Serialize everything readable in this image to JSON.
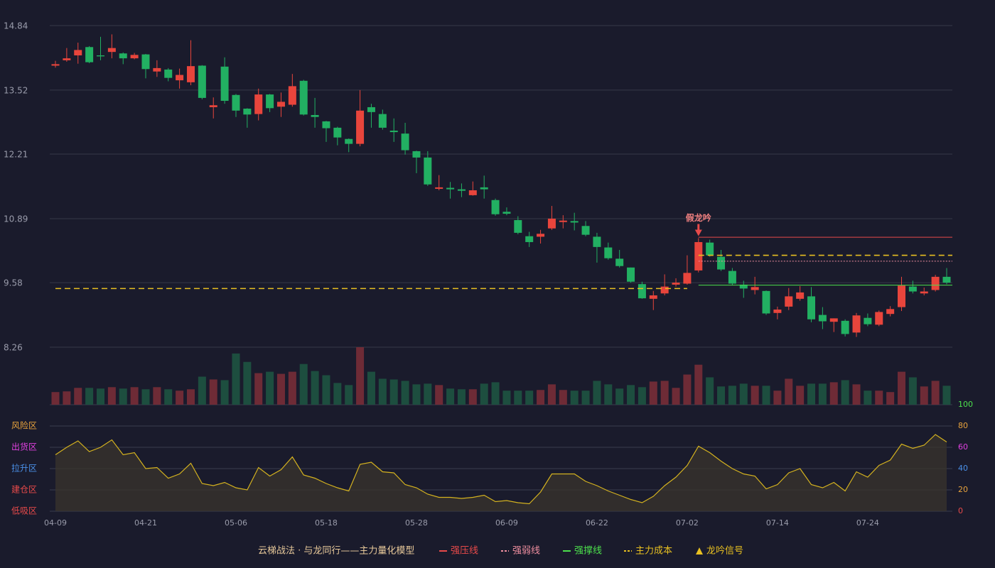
{
  "chart_data": {
    "type": "candlestick",
    "title": "云梯战法 · 与龙同行——主力量化模型",
    "categories": [
      "04-09",
      null,
      null,
      null,
      null,
      null,
      null,
      null,
      "04-21",
      null,
      null,
      null,
      null,
      null,
      null,
      null,
      "05-06",
      null,
      null,
      null,
      null,
      null,
      null,
      null,
      "05-18",
      null,
      null,
      null,
      null,
      null,
      null,
      null,
      "05-28",
      null,
      null,
      null,
      null,
      null,
      null,
      null,
      "06-09",
      null,
      null,
      null,
      null,
      null,
      null,
      null,
      "06-22",
      null,
      null,
      null,
      null,
      null,
      null,
      null,
      "07-02",
      null,
      null,
      null,
      null,
      null,
      null,
      null,
      "07-14",
      null,
      null,
      null,
      null,
      null,
      null,
      null,
      "07-24",
      null,
      null,
      null,
      null,
      null,
      null,
      null
    ],
    "open": [
      14.02,
      14.13,
      14.23,
      14.4,
      14.23,
      14.3,
      14.27,
      14.17,
      14.25,
      13.9,
      13.94,
      13.72,
      13.68,
      14.02,
      13.17,
      14.0,
      13.42,
      13.14,
      13.03,
      13.43,
      13.18,
      13.22,
      13.71,
      13.01,
      12.88,
      12.75,
      12.52,
      12.42,
      13.17,
      13.03,
      12.69,
      12.63,
      12.27,
      12.14,
      11.5,
      11.52,
      11.49,
      11.37,
      11.53,
      11.27,
      11.03,
      10.86,
      10.53,
      10.52,
      10.69,
      10.82,
      10.84,
      10.74,
      10.52,
      10.3,
      10.07,
      9.89,
      9.55,
      9.25,
      9.36,
      9.54,
      9.56,
      9.83,
      10.4,
      10.11,
      9.82,
      9.54,
      9.43,
      9.41,
      8.96,
      9.09,
      9.25,
      9.3,
      8.92,
      8.78,
      8.8,
      8.56,
      8.86,
      8.72,
      8.94,
      9.08,
      9.5,
      9.36,
      9.43,
      9.7
    ],
    "close": [
      14.05,
      14.17,
      14.34,
      14.09,
      14.21,
      14.38,
      14.17,
      14.24,
      13.95,
      13.97,
      13.77,
      13.83,
      14.01,
      13.36,
      13.21,
      13.3,
      13.1,
      13.02,
      13.43,
      13.15,
      13.28,
      13.6,
      13.02,
      12.97,
      12.74,
      12.55,
      12.42,
      13.1,
      13.07,
      12.75,
      12.66,
      12.29,
      12.14,
      11.59,
      11.53,
      11.49,
      11.46,
      11.47,
      11.49,
      10.98,
      10.99,
      10.6,
      10.41,
      10.58,
      10.89,
      10.85,
      10.81,
      10.56,
      10.31,
      10.08,
      9.92,
      9.6,
      9.26,
      9.32,
      9.5,
      9.58,
      9.78,
      10.41,
      10.14,
      9.85,
      9.56,
      9.46,
      9.49,
      8.95,
      9.03,
      9.3,
      9.38,
      8.83,
      8.79,
      8.85,
      8.53,
      8.91,
      8.73,
      8.98,
      9.04,
      9.52,
      9.4,
      9.4,
      9.7,
      9.58
    ],
    "high": [
      14.12,
      14.38,
      14.49,
      14.42,
      14.61,
      14.66,
      14.29,
      14.28,
      14.26,
      14.13,
      13.97,
      13.96,
      14.54,
      14.03,
      13.37,
      14.19,
      13.44,
      13.15,
      13.55,
      13.44,
      13.47,
      13.85,
      13.73,
      13.36,
      12.89,
      12.77,
      12.53,
      13.52,
      13.24,
      13.12,
      12.94,
      12.85,
      12.28,
      12.27,
      11.78,
      11.64,
      11.61,
      11.65,
      11.77,
      11.3,
      11.12,
      10.94,
      10.62,
      10.66,
      11.15,
      10.96,
      11.01,
      10.84,
      10.6,
      10.4,
      10.25,
      9.89,
      9.6,
      9.41,
      9.75,
      9.67,
      10.14,
      10.49,
      10.46,
      10.25,
      9.88,
      9.62,
      9.7,
      9.42,
      9.09,
      9.47,
      9.51,
      9.49,
      9.08,
      8.85,
      8.83,
      8.96,
      8.95,
      9.01,
      9.1,
      9.7,
      9.62,
      9.48,
      9.74,
      9.88
    ],
    "low": [
      13.98,
      14.1,
      14.06,
      14.07,
      14.13,
      14.17,
      14.05,
      14.15,
      13.76,
      13.79,
      13.7,
      13.55,
      13.62,
      13.33,
      12.94,
      13.24,
      12.97,
      12.75,
      12.9,
      13.07,
      12.97,
      13.18,
      13.0,
      12.75,
      12.46,
      12.39,
      12.25,
      12.37,
      12.75,
      12.71,
      12.46,
      12.2,
      11.82,
      11.56,
      11.47,
      11.3,
      11.33,
      11.36,
      11.3,
      10.95,
      10.96,
      10.57,
      10.31,
      10.38,
      10.66,
      10.69,
      10.65,
      10.53,
      9.99,
      10.05,
      9.89,
      9.58,
      9.25,
      9.02,
      9.32,
      9.5,
      9.54,
      9.79,
      10.11,
      9.82,
      9.53,
      9.27,
      9.34,
      8.92,
      8.83,
      9.02,
      9.21,
      8.77,
      8.63,
      8.57,
      8.48,
      8.47,
      8.69,
      8.69,
      8.89,
      9.0,
      9.36,
      9.32,
      9.4,
      9.55
    ],
    "volume": [
      18,
      19,
      24,
      24,
      23,
      25,
      23,
      25,
      22,
      25,
      22,
      20,
      22,
      40,
      36,
      35,
      73,
      61,
      45,
      47,
      44,
      47,
      58,
      48,
      42,
      31,
      28,
      82,
      47,
      37,
      36,
      34,
      29,
      30,
      28,
      23,
      22,
      22,
      30,
      32,
      20,
      20,
      20,
      21,
      29,
      21,
      20,
      20,
      34,
      29,
      23,
      28,
      25,
      33,
      34,
      24,
      43,
      57,
      39,
      26,
      27,
      30,
      27,
      27,
      20,
      37,
      27,
      30,
      30,
      32,
      35,
      29,
      20,
      20,
      18,
      47,
      39,
      26,
      34,
      27
    ],
    "up_color": "#e8453c",
    "down_color": "#22b062",
    "ylim": [
      8.26,
      14.84
    ],
    "yticks": [
      8.26,
      9.58,
      10.89,
      12.21,
      13.52,
      14.84
    ],
    "grid": true,
    "levels": [
      {
        "name": "强压线",
        "color": "#e84a4a",
        "style": "solid",
        "segments": [
          {
            "from": 57,
            "to": 79,
            "value": 10.51
          }
        ]
      },
      {
        "name": "强弱线",
        "color": "#f08fa0",
        "style": "dotted",
        "segments": [
          {
            "from": 57,
            "to": 79,
            "value": 10.02
          }
        ]
      },
      {
        "name": "强撑线",
        "color": "#4ce04c",
        "style": "solid",
        "segments": [
          {
            "from": 57,
            "to": 79,
            "value": 9.53
          }
        ]
      },
      {
        "name": "主力成本",
        "color": "#e8c021",
        "style": "dashed",
        "segments": [
          {
            "from": 0,
            "to": 56,
            "value": 9.46
          },
          {
            "from": 57,
            "to": 79,
            "value": 10.14
          }
        ]
      }
    ],
    "signal_name": "龙吟信号",
    "signal_color": "#e8c021",
    "signals": [
      {
        "index": 57,
        "label": "假龙吟"
      }
    ],
    "indicator": {
      "values": [
        53,
        60,
        66,
        56,
        60,
        67,
        53,
        55,
        40,
        41,
        31,
        35,
        45,
        26,
        24,
        27,
        22,
        20,
        41,
        33,
        39,
        51,
        34,
        31,
        26,
        22,
        19,
        44,
        46,
        37,
        36,
        25,
        22,
        16,
        13,
        13,
        12,
        13,
        15,
        9,
        10,
        8,
        7,
        18,
        35,
        35,
        35,
        28,
        24,
        19,
        15,
        11,
        8,
        14,
        24,
        32,
        43,
        61,
        55,
        47,
        40,
        35,
        33,
        21,
        25,
        36,
        40,
        25,
        22,
        27,
        19,
        37,
        32,
        43,
        48,
        63,
        59,
        62,
        72,
        65
      ],
      "color": "#d4b21f",
      "ylim": [
        0,
        100
      ],
      "yticks": [
        0,
        20,
        40,
        60,
        80,
        100
      ],
      "tick_colors": [
        "#e84a4a",
        "#e8a33d",
        "#4a90e8",
        "#e040e0",
        "#e8a33d",
        "#4ce04c"
      ],
      "zones": [
        {
          "value": 80,
          "label": "风险区",
          "color": "#e8a33d"
        },
        {
          "value": 60,
          "label": "出货区",
          "color": "#e040e0"
        },
        {
          "value": 40,
          "label": "拉升区",
          "color": "#4a90e8"
        },
        {
          "value": 20,
          "label": "建仓区",
          "color": "#e84a4a"
        },
        {
          "value": 0,
          "label": "低吸区",
          "color": "#e84a4a"
        }
      ]
    }
  }
}
